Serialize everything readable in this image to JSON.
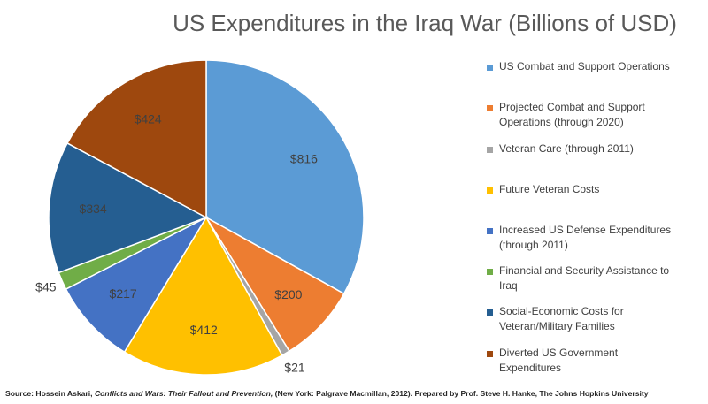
{
  "chart_data": {
    "type": "pie",
    "title": "US Expenditures in the Iraq War (Billions of USD)",
    "categories": [
      "US Combat and Support Operations",
      "Projected Combat and Support Operations (through 2020)",
      "Veteran Care (through 2011)",
      "Future Veteran Costs",
      "Increased US Defense Expenditures (through 2011)",
      "Financial and Security Assistance to Iraq",
      "Social-Economic Costs for Veteran/Military Families",
      "Diverted US Government Expenditures"
    ],
    "values": [
      816,
      200,
      21,
      412,
      217,
      45,
      334,
      424
    ],
    "value_labels": [
      "$816",
      "$200",
      "$21",
      "$412",
      "$217",
      "$45",
      "$334",
      "$424"
    ],
    "colors": [
      "#5b9bd5",
      "#ed7d31",
      "#a5a5a5",
      "#ffc000",
      "#4472c4",
      "#70ad47",
      "#255e91",
      "#9e480e"
    ],
    "legend": "right",
    "source": [
      "Source: Hossein Askari, ",
      "Conflicts and Wars: Their Fallout and Prevention,",
      " (New York: Palgrave Macmillan, 2012). Prepared by Prof. Steve H. Hanke, The Johns Hopkins University"
    ]
  }
}
